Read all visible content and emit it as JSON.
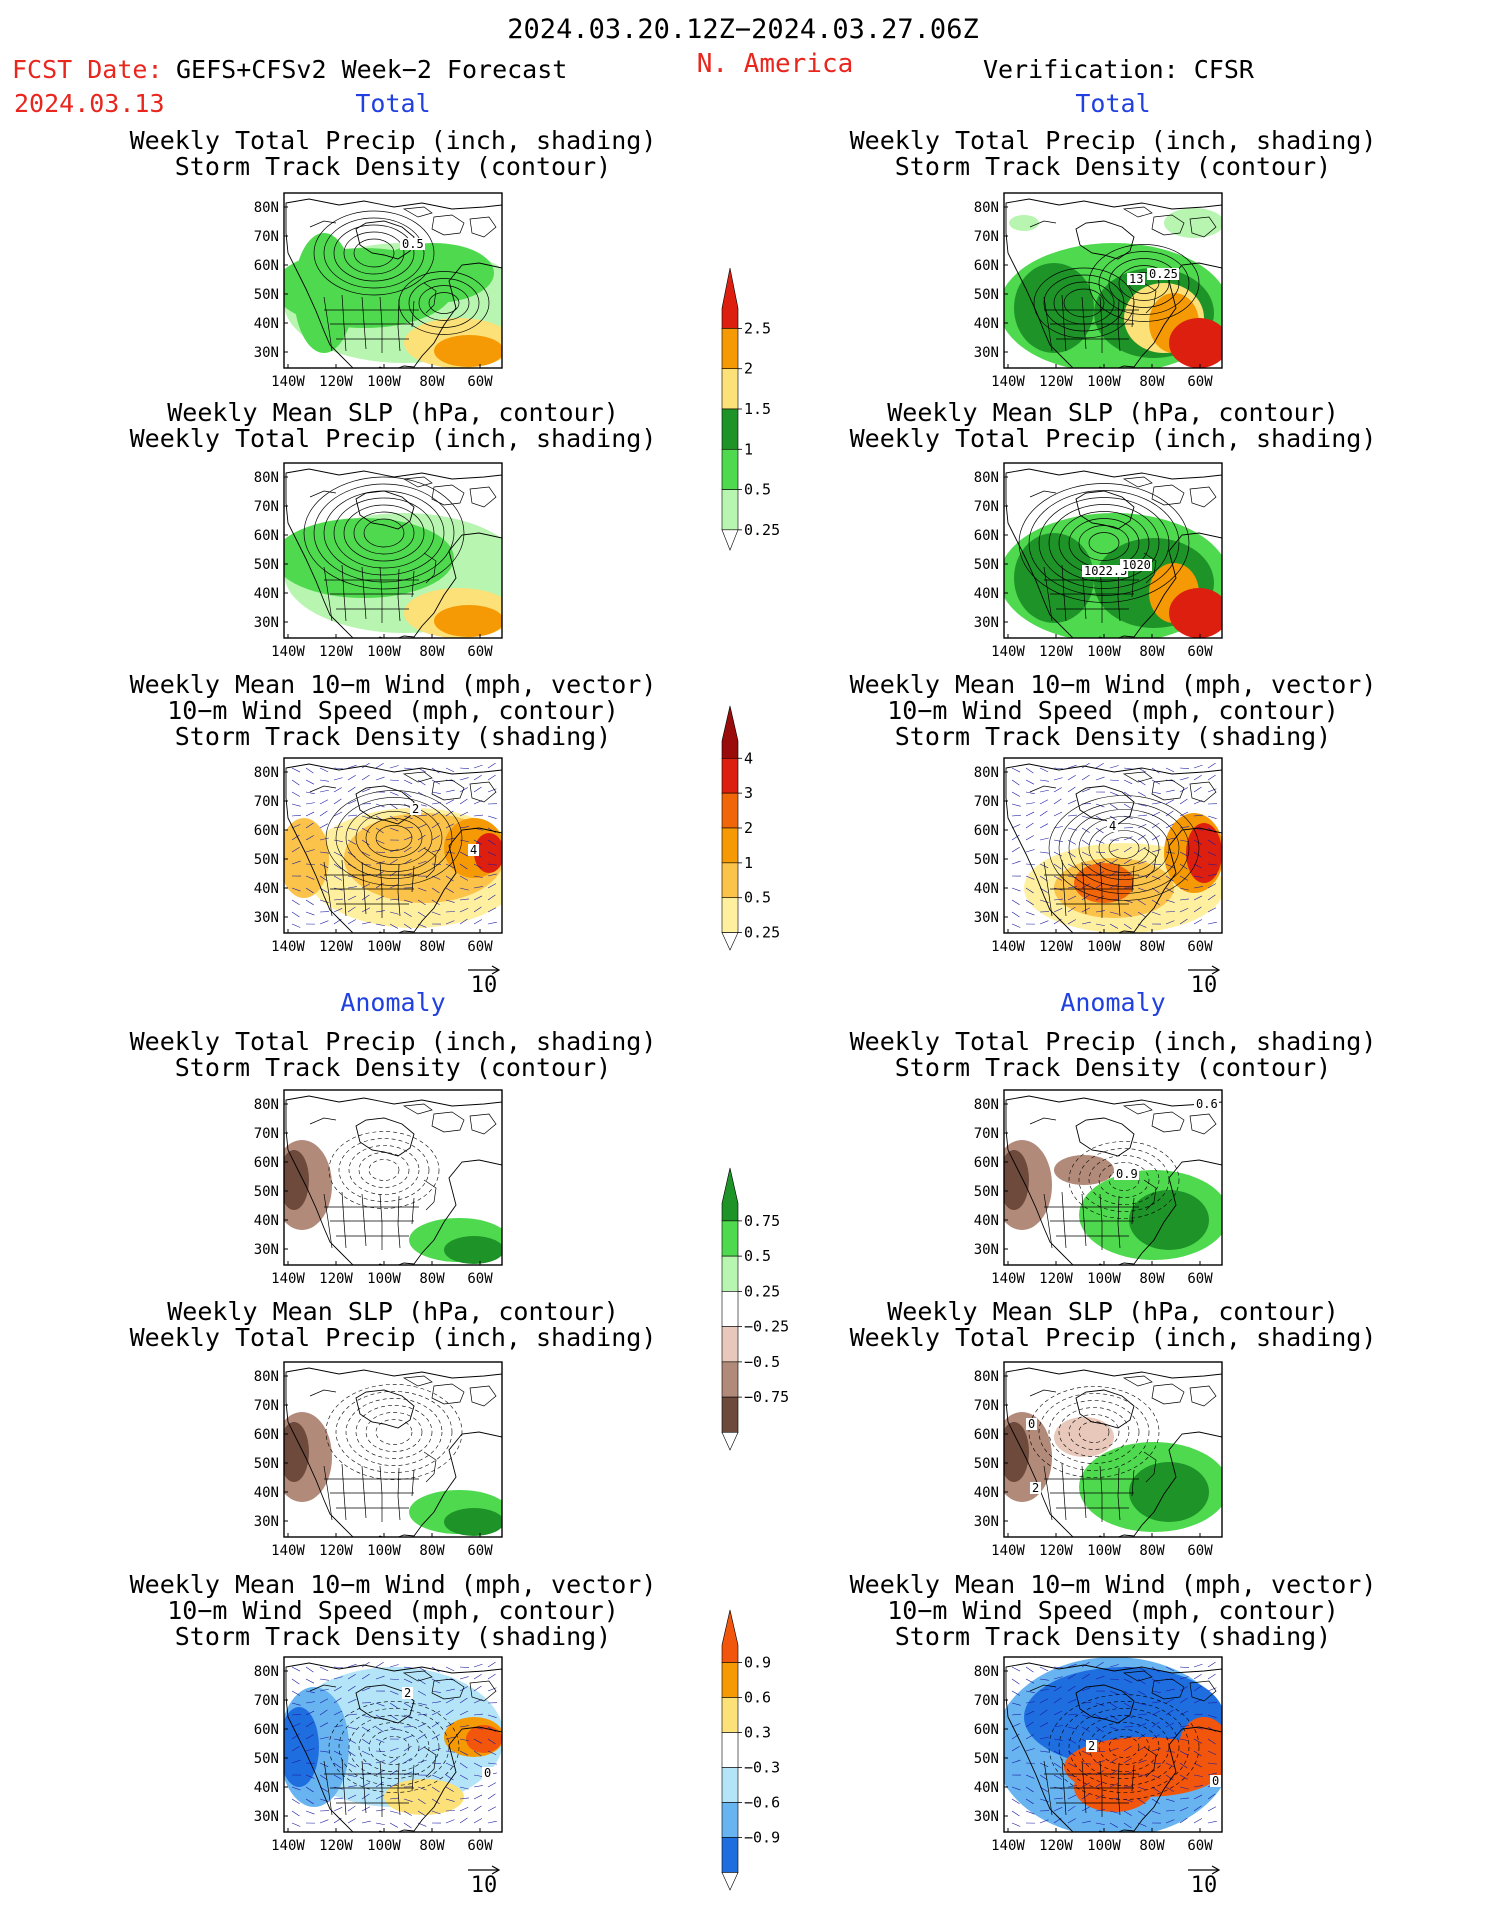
{
  "header": {
    "period": "2024.03.20.12Z−2024.03.27.06Z",
    "region": "N. America",
    "fcst_label": "FCST Date:",
    "model": "GEFS+CFSv2 Week−2 Forecast",
    "fcst_date": "2024.03.13",
    "verification": "Verification: CFSR"
  },
  "sections": {
    "total": "Total",
    "anomaly": "Anomaly"
  },
  "panel_titles": {
    "precip_track": [
      "Weekly Total Precip (inch, shading)",
      "Storm Track Density (contour)"
    ],
    "slp_precip": [
      "Weekly Mean SLP (hPa, contour)",
      "Weekly Total Precip (inch, shading)"
    ],
    "wind_track": [
      "Weekly Mean 10−m Wind (mph, vector)",
      "10−m Wind Speed (mph, contour)",
      "Storm Track Density (shading)"
    ]
  },
  "map_axes": {
    "lat_labels": [
      "80N",
      "70N",
      "60N",
      "50N",
      "40N",
      "30N"
    ],
    "lon_labels": [
      "140W",
      "120W",
      "100W",
      "80W",
      "60W"
    ]
  },
  "vector_reference": "10",
  "colorbars": {
    "precip_total": {
      "labels": [
        "2.5",
        "2",
        "1.5",
        "1",
        "0.5",
        "0.25"
      ],
      "colors": [
        "#dd1f0f",
        "#f59a05",
        "#fce078",
        "#1e9428",
        "#4fd94f",
        "#b8f5b0"
      ]
    },
    "track_total": {
      "labels": [
        "4",
        "3",
        "2",
        "1",
        "0.5",
        "0.25"
      ],
      "colors": [
        "#9a0c0c",
        "#dd1f0f",
        "#f2660a",
        "#f59a05",
        "#fbc34a",
        "#fff0a0"
      ]
    },
    "precip_anomaly": {
      "labels": [
        "0.75",
        "0.5",
        "0.25",
        "−0.25",
        "−0.5",
        "−0.75"
      ],
      "colors": [
        "#1e9428",
        "#4fd94f",
        "#b8f5b0",
        "#ffffff",
        "#e8c8ba",
        "#b28a7a",
        "#6e4a3c"
      ]
    },
    "track_anomaly": {
      "labels": [
        "0.9",
        "0.6",
        "0.3",
        "−0.3",
        "−0.6",
        "−0.9"
      ],
      "colors": [
        "#f2550c",
        "#f59a05",
        "#fce078",
        "#ffffff",
        "#b4e4f8",
        "#68b4f0",
        "#1f6ee0"
      ]
    },
    "colorbar_note": "Colorbars carry an unlabeled lowest category"
  },
  "panel_labels": {
    "left_precip_track": "0.5",
    "right_precip_track_a": "13",
    "right_precip_track_b": "0.25",
    "right_slp_a": "1022.5",
    "right_slp_b": "1020",
    "left_wind_a": "2",
    "left_wind_b": "4",
    "right_wind_a": "4",
    "right_anom_precip": "0.6",
    "right_anom_precip_b": "0.9",
    "right_anom_slp": "2",
    "right_anom_slp_b": "0",
    "left_anom_wind": "2",
    "left_anom_wind_b": "0",
    "right_anom_wind_a": "2",
    "right_anom_wind_b": "0"
  }
}
